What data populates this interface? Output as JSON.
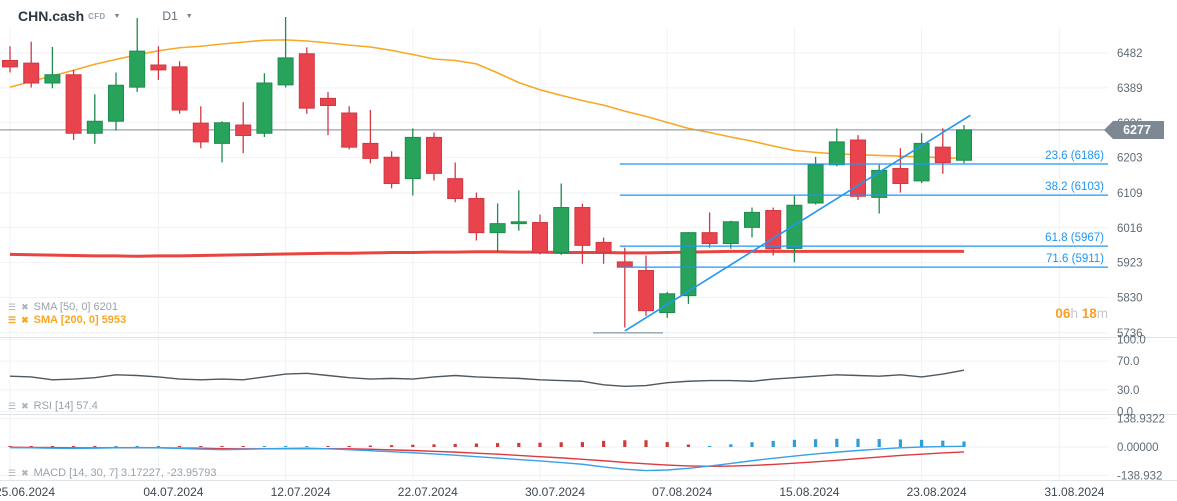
{
  "header": {
    "symbol": "CHN.cash",
    "type_tag": "CFD",
    "timeframe": "D1"
  },
  "price_axis": {
    "ticks": [
      6482,
      6389,
      6296,
      6203,
      6109,
      6016,
      5923,
      5830,
      5736
    ],
    "current_price": "6277"
  },
  "rsi_axis": [
    "100.0",
    "70.0",
    "30.0",
    "0.0"
  ],
  "macd_axis": [
    "138.9322",
    "0.00000",
    "-138.932"
  ],
  "time_axis": {
    "labels": [
      "25.06.2024",
      "04.07.2024",
      "12.07.2024",
      "22.07.2024",
      "30.07.2024",
      "07.08.2024",
      "15.08.2024",
      "23.08.2024",
      "31.08.2024"
    ],
    "tick_indices": [
      0,
      7,
      13,
      19,
      25,
      31,
      37,
      43,
      49.5
    ]
  },
  "session_countdown": {
    "hours": "06",
    "h_unit": "h",
    "minutes": "18",
    "m_unit": "m"
  },
  "indicator_labels": {
    "sma50": {
      "text": "SMA [50, 0] 6201"
    },
    "sma200": {
      "text": "SMA [200, 0] 5953"
    },
    "rsi": {
      "text": "RSI [14] 57.4"
    },
    "macd": {
      "text": "MACD [14, 30, 7] 3.17227, -23.95793"
    }
  },
  "chart_data": {
    "type": "candlestick",
    "title": "CHN.cash CFD D1",
    "ylim": [
      5736,
      6482
    ],
    "dates": [
      "25.06.2024",
      "26.06.2024",
      "27.06.2024",
      "28.06.2024",
      "01.07.2024",
      "02.07.2024",
      "03.07.2024",
      "04.07.2024",
      "05.07.2024",
      "08.07.2024",
      "09.07.2024",
      "10.07.2024",
      "11.07.2024",
      "12.07.2024",
      "15.07.2024",
      "16.07.2024",
      "17.07.2024",
      "18.07.2024",
      "19.07.2024",
      "22.07.2024",
      "23.07.2024",
      "24.07.2024",
      "25.07.2024",
      "26.07.2024",
      "29.07.2024",
      "30.07.2024",
      "31.07.2024",
      "01.08.2024",
      "02.08.2024",
      "05.08.2024",
      "06.08.2024",
      "07.08.2024",
      "08.08.2024",
      "09.08.2024",
      "12.08.2024",
      "13.08.2024",
      "14.08.2024",
      "15.08.2024",
      "16.08.2024",
      "19.08.2024",
      "20.08.2024",
      "21.08.2024",
      "22.08.2024",
      "23.08.2024",
      "26.08.2024",
      "27.08.2024"
    ],
    "candles": [
      [
        6462,
        6500,
        6430,
        6445
      ],
      [
        6455,
        6512,
        6390,
        6402
      ],
      [
        6402,
        6498,
        6388,
        6424
      ],
      [
        6424,
        6437,
        6250,
        6268
      ],
      [
        6268,
        6372,
        6240,
        6300
      ],
      [
        6300,
        6430,
        6275,
        6396
      ],
      [
        6391,
        6575,
        6378,
        6487
      ],
      [
        6450,
        6500,
        6410,
        6437
      ],
      [
        6445,
        6460,
        6320,
        6330
      ],
      [
        6295,
        6340,
        6228,
        6245
      ],
      [
        6241,
        6300,
        6190,
        6296
      ],
      [
        6290,
        6351,
        6215,
        6262
      ],
      [
        6268,
        6428,
        6258,
        6402
      ],
      [
        6397,
        6578,
        6390,
        6469
      ],
      [
        6480,
        6497,
        6320,
        6335
      ],
      [
        6361,
        6378,
        6263,
        6342
      ],
      [
        6322,
        6340,
        6225,
        6231
      ],
      [
        6241,
        6330,
        6188,
        6201
      ],
      [
        6204,
        6220,
        6121,
        6134
      ],
      [
        6147,
        6281,
        6102,
        6257
      ],
      [
        6257,
        6270,
        6142,
        6161
      ],
      [
        6147,
        6190,
        6084,
        6094
      ],
      [
        6094,
        6110,
        5982,
        6003
      ],
      [
        6003,
        6081,
        5950,
        6027
      ],
      [
        6027,
        6116,
        6008,
        6032
      ],
      [
        6030,
        6051,
        5945,
        5950
      ],
      [
        5950,
        6134,
        5944,
        6070
      ],
      [
        6070,
        6080,
        5920,
        5969
      ],
      [
        5977,
        5990,
        5920,
        5950
      ],
      [
        5925,
        5963,
        5750,
        5911
      ],
      [
        5902,
        5942,
        5781,
        5795
      ],
      [
        5790,
        5845,
        5776,
        5840
      ],
      [
        5835,
        6005,
        5813,
        6003
      ],
      [
        6003,
        6057,
        5963,
        5974
      ],
      [
        5974,
        6035,
        5960,
        6032
      ],
      [
        6017,
        6070,
        5990,
        6057
      ],
      [
        6062,
        6070,
        5942,
        5960
      ],
      [
        5961,
        6102,
        5924,
        6076
      ],
      [
        6082,
        6205,
        6078,
        6184
      ],
      [
        6184,
        6281,
        6180,
        6245
      ],
      [
        6250,
        6263,
        6090,
        6100
      ],
      [
        6097,
        6184,
        6054,
        6169
      ],
      [
        6174,
        6228,
        6110,
        6134
      ],
      [
        6141,
        6268,
        6135,
        6241
      ],
      [
        6231,
        6281,
        6160,
        6190
      ],
      [
        6196,
        6290,
        6188,
        6277
      ]
    ],
    "overlays": {
      "sma50": {
        "period": 50,
        "last_value": 6201,
        "values": [
          6391,
          6406,
          6421,
          6436,
          6452,
          6465,
          6477,
          6488,
          6496,
          6500,
          6506,
          6511,
          6516,
          6517,
          6514,
          6509,
          6503,
          6498,
          6489,
          6478,
          6466,
          6462,
          6453,
          6429,
          6403,
          6384,
          6369,
          6355,
          6343,
          6327,
          6313,
          6297,
          6281,
          6270,
          6258,
          6247,
          6234,
          6222,
          6217,
          6213,
          6211,
          6209,
          6207,
          6205,
          6203,
          6201
        ]
      },
      "sma200": {
        "period": 200,
        "last_value": 5953,
        "values": [
          5945,
          5944,
          5943,
          5942,
          5941,
          5941,
          5940,
          5941,
          5941,
          5942,
          5943,
          5944,
          5945,
          5946,
          5947,
          5948,
          5948,
          5949,
          5950,
          5950,
          5951,
          5951,
          5952,
          5952,
          5951,
          5951,
          5950,
          5950,
          5950,
          5949,
          5949,
          5950,
          5951,
          5952,
          5953,
          5953,
          5953,
          5953,
          5953,
          5953,
          5953,
          5953,
          5953,
          5953,
          5953,
          5953
        ]
      }
    },
    "fibonacci": {
      "start_index": 29,
      "levels": [
        {
          "level": "23.6",
          "price": 6186
        },
        {
          "level": "38.2",
          "price": 6103
        },
        {
          "level": "61.8",
          "price": 5967
        },
        {
          "level": "71.6",
          "price": 5911
        },
        {
          "level": "100.0",
          "price": 5736,
          "short_segment": true
        }
      ]
    },
    "trendline": {
      "from_index": 29,
      "from_price": 5741,
      "to_index": 45.3,
      "to_price": 6316
    },
    "rsi": {
      "period": 14,
      "last": 57.4,
      "values": [
        49,
        48,
        44,
        45,
        47,
        51,
        50,
        48,
        45,
        44,
        45,
        44,
        48,
        52,
        53,
        50,
        47,
        45,
        46,
        45,
        48,
        50,
        48,
        47,
        46,
        44,
        43,
        42,
        37,
        35,
        36,
        40,
        42,
        43,
        43,
        42,
        45,
        47,
        49,
        51,
        50,
        49,
        51,
        48,
        52,
        57.4
      ]
    },
    "macd": {
      "params": [
        14,
        30,
        7
      ],
      "last_line": 3.17227,
      "last_signal": -23.95793,
      "line": [
        -3,
        -4,
        -6,
        -7,
        -6,
        -4,
        -3,
        -4,
        -7,
        -10,
        -13,
        -11,
        -9,
        -7,
        -6,
        -9,
        -13,
        -18,
        -23,
        -28,
        -34,
        -40,
        -47,
        -54,
        -61,
        -68,
        -76,
        -84,
        -97,
        -108,
        -115,
        -112,
        -104,
        -93,
        -80,
        -67,
        -55,
        -44,
        -34,
        -25,
        -17,
        -10,
        -4,
        0,
        2,
        3.17
      ],
      "signal": [
        -1,
        -2,
        -3,
        -4,
        -4,
        -4,
        -4,
        -4,
        -5,
        -6,
        -8,
        -9,
        -9,
        -8,
        -8,
        -8,
        -9,
        -11,
        -14,
        -17,
        -21,
        -25,
        -30,
        -35,
        -41,
        -47,
        -53,
        -60,
        -67,
        -75,
        -82,
        -88,
        -92,
        -94,
        -93,
        -90,
        -85,
        -79,
        -72,
        -65,
        -57,
        -49,
        -41,
        -35,
        -29,
        -23.96
      ]
    },
    "colors": {
      "up": "#27a35c",
      "up_border": "#1f8c4d",
      "down": "#e9434e",
      "down_border": "#d23842",
      "sma50": "#f7a825",
      "sma200": "#e5312b",
      "fib": "#2196f3",
      "trendline": "#2196f3",
      "rsi": "#4d5861",
      "macd_line": "#3aa0e8",
      "macd_signal": "#e0393f",
      "hist_pos": "#2f9ddb",
      "hist_neg": "#cf3b3b",
      "price_line": "#98a1a9",
      "grid": "#f1f2f4",
      "separator": "#e0e4e7"
    }
  }
}
